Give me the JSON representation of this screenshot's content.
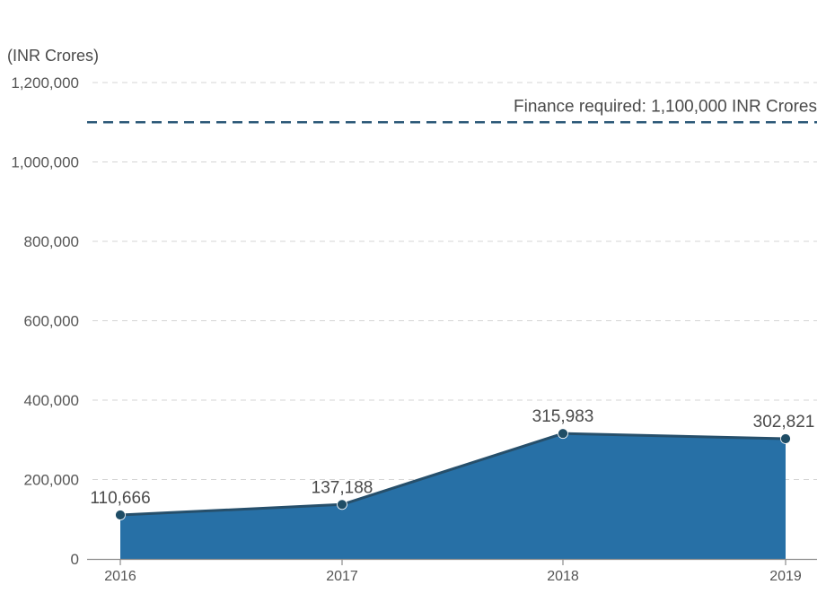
{
  "chart_data": {
    "type": "area",
    "unit_label": "(INR Crores)",
    "categories": [
      "2016",
      "2017",
      "2018",
      "2019"
    ],
    "series": [
      {
        "values": [
          110666,
          137188,
          315983,
          302821
        ],
        "data_labels": [
          "110,666",
          "137,188",
          "315,983",
          "302,821"
        ]
      }
    ],
    "ylim": [
      0,
      1200000
    ],
    "y_ticks": [
      0,
      200000,
      400000,
      600000,
      800000,
      1000000,
      1200000
    ],
    "y_tick_labels": [
      "0",
      "200,000",
      "400,000",
      "600,000",
      "800,000",
      "1,000,000",
      "1,200,000"
    ],
    "grid": true,
    "reference_line": {
      "value": 1100000,
      "label": "Finance required: 1,100,000 INR Crores",
      "style": "dashed"
    },
    "colors": {
      "area_fill": "#2770a6",
      "line": "#264f6b",
      "marker": "#1f4d66",
      "reference_line": "#2b5877"
    }
  }
}
